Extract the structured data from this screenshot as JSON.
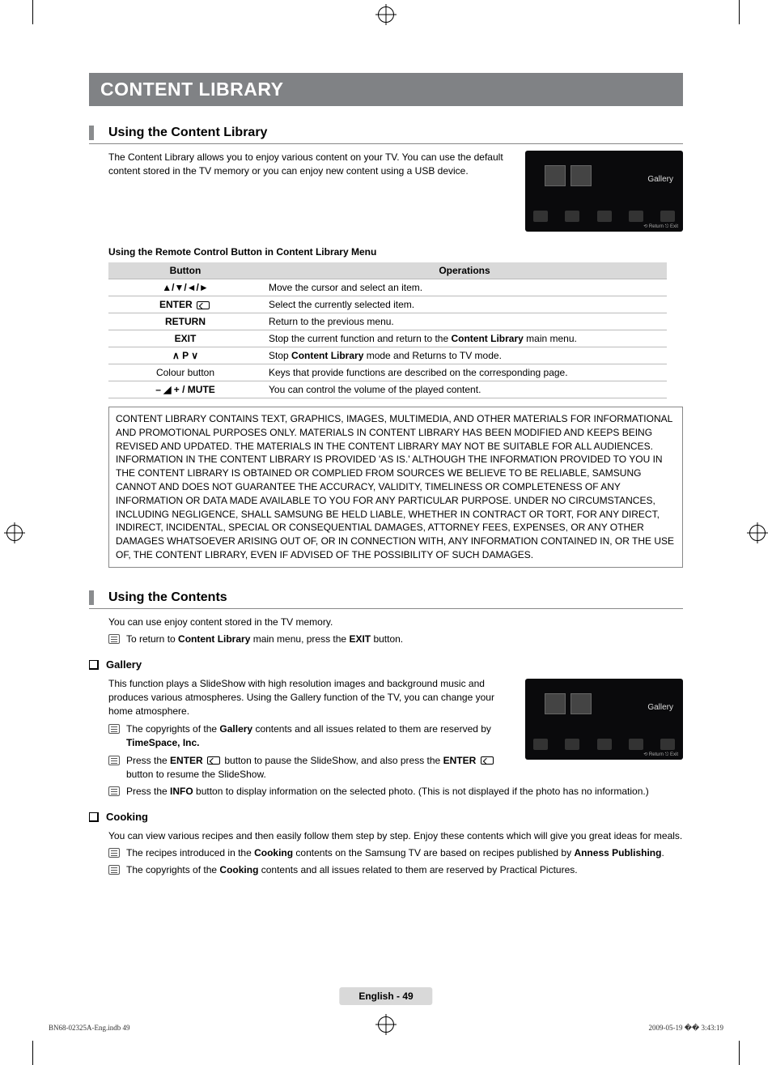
{
  "banner": "CONTENT LIBRARY",
  "section1": {
    "title": "Using the Content Library",
    "intro": "The Content Library allows you to enjoy various content on your TV. You can use the default content stored in the TV memory or you can enjoy new content using a USB device.",
    "screenshot_label": "Gallery",
    "screenshot_footer": "⟲ Return   ⎋ Exit",
    "subhead": "Using the Remote Control Button in Content Library Menu",
    "table_header": {
      "button": "Button",
      "operations": "Operations"
    },
    "rows": [
      {
        "button": "▲/▼/◄/►",
        "op": "Move the cursor and select an item."
      },
      {
        "button_html": "<b>ENTER</b> <span class='enter-ico'></span>",
        "op": "Select the currently selected item."
      },
      {
        "button": "RETURN",
        "op": "Return to the previous menu."
      },
      {
        "button": "EXIT",
        "op_html": "Stop the current function and return to the <b>Content Library</b> main menu."
      },
      {
        "button": "∧ P ∨",
        "op_html": "Stop <b>Content Library</b> mode and Returns to TV mode."
      },
      {
        "button_plain": "Colour button",
        "op": "Keys that provide functions are described on the corresponding page."
      },
      {
        "button_html": "<b>– ◢ +</b> / <b>MUTE</b>",
        "op": "You can control the volume of the played content."
      }
    ],
    "disclaimer": "CONTENT LIBRARY CONTAINS TEXT, GRAPHICS, IMAGES, MULTIMEDIA, AND OTHER MATERIALS FOR INFORMATIONAL AND PROMOTIONAL PURPOSES ONLY. MATERIALS IN CONTENT LIBRARY HAS BEEN MODIFIED AND KEEPS BEING REVISED AND UPDATED. THE MATERIALS IN THE CONTENT LIBRARY MAY NOT BE SUITABLE FOR ALL AUDIENCES.\nINFORMATION IN THE CONTENT LIBRARY IS PROVIDED 'AS IS.' ALTHOUGH THE INFORMATION PROVIDED TO YOU IN THE CONTENT LIBRARY IS OBTAINED OR COMPLIED FROM SOURCES WE BELIEVE TO BE RELIABLE, SAMSUNG CANNOT AND DOES NOT GUARANTEE THE ACCURACY, VALIDITY, TIMELINESS OR COMPLETENESS OF ANY INFORMATION OR DATA MADE AVAILABLE TO YOU FOR ANY PARTICULAR PURPOSE. UNDER NO CIRCUMSTANCES, INCLUDING NEGLIGENCE, SHALL SAMSUNG BE HELD LIABLE, WHETHER IN CONTRACT OR TORT, FOR ANY DIRECT, INDIRECT, INCIDENTAL, SPECIAL OR CONSEQUENTIAL DAMAGES, ATTORNEY FEES, EXPENSES, OR ANY OTHER DAMAGES WHATSOEVER ARISING OUT OF, OR IN CONNECTION WITH, ANY INFORMATION CONTAINED IN, OR THE USE OF, THE CONTENT LIBRARY, EVEN IF ADVISED OF THE POSSIBILITY OF SUCH DAMAGES."
  },
  "section2": {
    "title": "Using the Contents",
    "intro": "You can use enjoy content stored in the TV memory.",
    "note_return_html": "To return to <b>Content Library</b> main menu, press the <b>EXIT</b> button.",
    "gallery": {
      "label": "Gallery",
      "text": "This function plays a SlideShow with high resolution images and background music and produces various atmospheres. Using the Gallery function of the TV, you can change your home atmosphere.",
      "note1_html": "The copyrights of the <b>Gallery</b> contents and all issues related to them are reserved by <b>TimeSpace, Inc.</b>",
      "note2_html": "Press the <b>ENTER</b> <span class='enter-ico'></span> button to pause the SlideShow, and also press the <b>ENTER</b> <span class='enter-ico'></span> button to resume the SlideShow.",
      "note3_html": "Press the <b>INFO</b> button to display information on the selected photo. (This is not displayed if the photo has no information.)",
      "screenshot_label": "Gallery",
      "screenshot_footer": "⟲ Return   ⎋ Exit"
    },
    "cooking": {
      "label": "Cooking",
      "text": "You can view various recipes and then easily follow them step by step. Enjoy these contents which will give you great ideas for meals.",
      "note1_html": "The recipes introduced in the <b>Cooking</b> contents on the Samsung TV are based on recipes published by <b>Anness Publishing</b>.",
      "note2_html": "The copyrights of the <b>Cooking</b> contents and all issues related to them are reserved by Practical Pictures."
    }
  },
  "footer": {
    "page": "English - 49"
  },
  "print": {
    "left": "BN68-02325A-Eng.indb   49",
    "right": "2009-05-19   �� 3:43:19"
  },
  "colors": {
    "banner_bg": "#808285",
    "grey": "#d9d9d9"
  },
  "screenshot_icons": [
    "Gallery",
    "Cooking",
    "Game",
    "Children",
    "Wellness"
  ]
}
